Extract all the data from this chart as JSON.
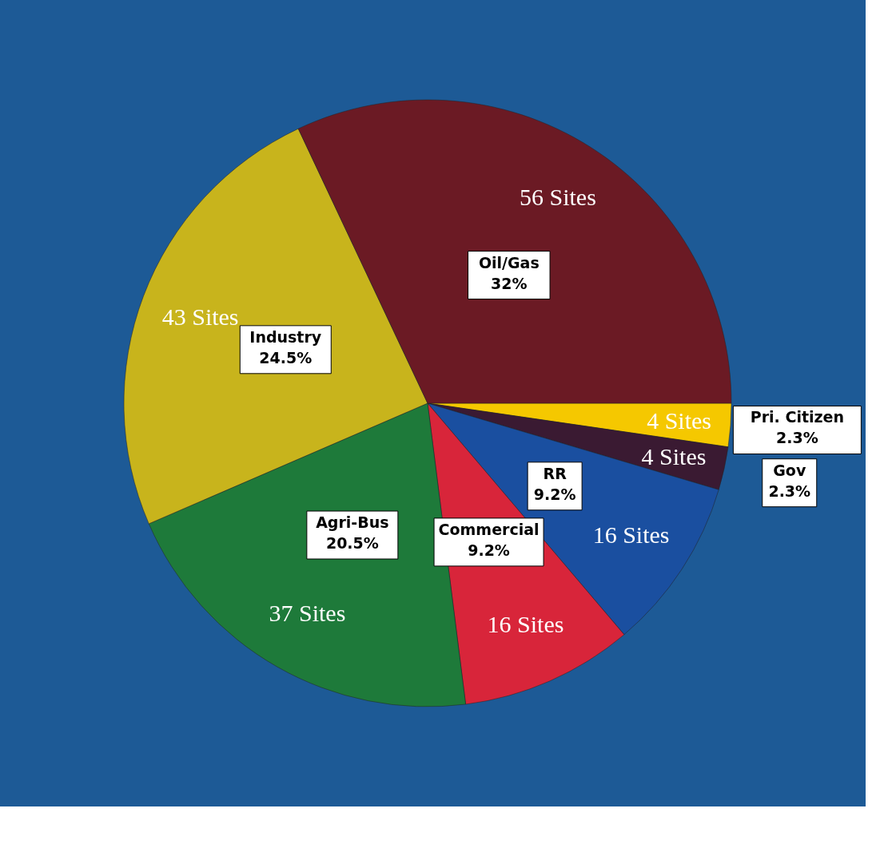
{
  "chart_data": {
    "type": "pie",
    "categories": [
      "Pri. Citizen",
      "Gov",
      "RR",
      "Commercial",
      "Agri-Bus",
      "Industry",
      "Oil/Gas"
    ],
    "values": [
      2.3,
      2.3,
      9.2,
      9.2,
      20.5,
      24.5,
      32
    ],
    "value_labels": [
      "2.3%",
      "2.3%",
      "9.2%",
      "9.2%",
      "20.5%",
      "24.5%",
      "32%"
    ],
    "colors": [
      "#f5c800",
      "#3a1a32",
      "#1a4fa0",
      "#d8253a",
      "#1e7a3a",
      "#c8b41c",
      "#6b1a24"
    ],
    "annotations": [
      {
        "text": "4 Sites",
        "x": "Pri. Citizen"
      },
      {
        "text": "4 Sites",
        "x": "Gov"
      },
      {
        "text": "16 Sites",
        "x": "RR"
      },
      {
        "text": "16 Sites",
        "x": "Commercial"
      },
      {
        "text": "37 Sites",
        "x": "Agri-Bus"
      },
      {
        "text": "43 Sites",
        "x": "Industry"
      },
      {
        "text": "56 Sites",
        "x": "Oil/Gas"
      }
    ]
  }
}
